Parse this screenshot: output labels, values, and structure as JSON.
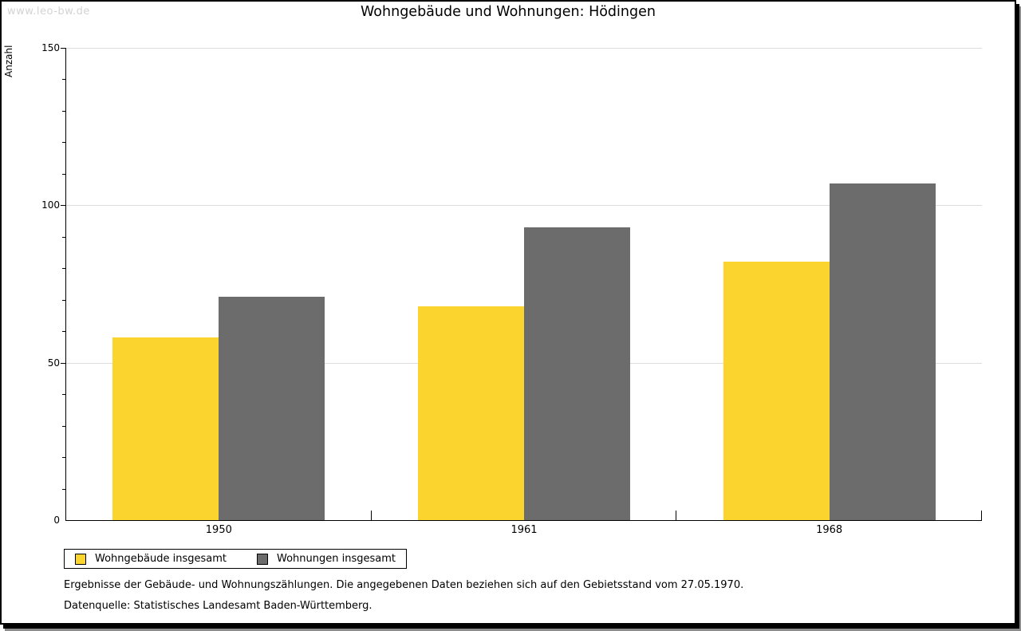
{
  "watermark": "www.leo-bw.de",
  "chart_data": {
    "type": "bar",
    "title": "Wohngebäude und Wohnungen: Hödingen",
    "ylabel": "Anzahl",
    "xlabel": "",
    "categories": [
      "1950",
      "1961",
      "1968"
    ],
    "series": [
      {
        "name": "Wohngebäude insgesamt",
        "color": "#fbd52e",
        "values": [
          58,
          68,
          82
        ]
      },
      {
        "name": "Wohnungen insgesamt",
        "color": "#6c6c6c",
        "values": [
          71,
          93,
          107
        ]
      }
    ],
    "ylim": [
      0,
      150
    ],
    "yticks_major": [
      0,
      50,
      100,
      150
    ],
    "ytick_minor_step": 10,
    "grid": true,
    "gridline_color": "#dcdcdc",
    "legend_position": "bottom-left"
  },
  "footnotes": {
    "line1": "Ergebnisse der Gebäude- und Wohnungszählungen. Die angegebenen Daten beziehen sich auf den Gebietsstand vom 27.05.1970.",
    "line2": "Datenquelle: Statistisches Landesamt Baden-Württemberg."
  }
}
